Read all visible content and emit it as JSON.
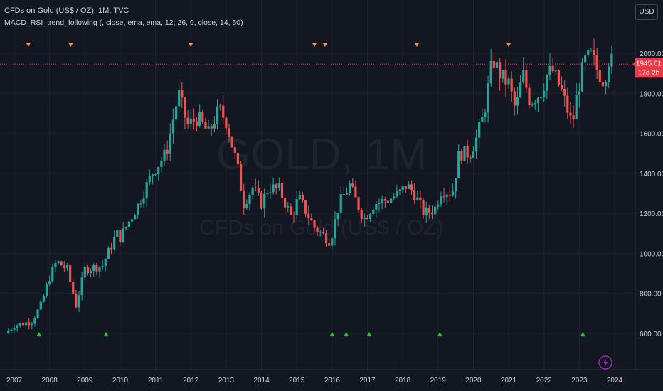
{
  "header": {
    "title": "CFDs on Gold (US$ / OZ), 1M, TVC",
    "indicator": "MACD_RSI_trend_following (, close, ema, ema, 12, 26, 9, close, 14, 50)"
  },
  "watermark": {
    "symbol": "GOLD, 1M",
    "name": "CFDs on Gold (US$ / OZ)"
  },
  "currency_button": "USD",
  "price_axis": {
    "ticks": [
      "2000.00",
      "1800.00",
      "1600.00",
      "1400.00",
      "1200.00",
      "1000.00",
      "800.00",
      "600.00"
    ],
    "tick_values": [
      2000,
      1800,
      1600,
      1400,
      1200,
      1000,
      800,
      600
    ],
    "last_price": "1945.61",
    "countdown": "17d 2h",
    "last_price_value": 1945.61
  },
  "colors": {
    "up": "#26a69a",
    "down": "#ef5350",
    "sell_marker": "#f7925b",
    "buy_marker": "#2bc52b",
    "price_line": "#f23645",
    "background": "#131722",
    "grid": "#1e222d",
    "lightning": "#9c27b0"
  },
  "icons": {
    "lightning": "lightning-icon"
  },
  "chart_data": {
    "type": "candlestick",
    "timeframe": "1M",
    "x_ticks": [
      "2007",
      "2008",
      "2009",
      "2010",
      "2011",
      "2012",
      "2013",
      "2014",
      "2015",
      "2016",
      "2017",
      "2018",
      "2019",
      "2020",
      "2021",
      "2022",
      "2023",
      "2024"
    ],
    "ylim": [
      560,
      2080
    ],
    "x_range": [
      2006.75,
      2024.2
    ],
    "grid": true,
    "close_series": [
      [
        2006.75,
        600
      ],
      [
        2007.0,
        640
      ],
      [
        2007.5,
        660
      ],
      [
        2007.75,
        740
      ],
      [
        2008.0,
        880
      ],
      [
        2008.2,
        960
      ],
      [
        2008.5,
        920
      ],
      [
        2008.75,
        740
      ],
      [
        2009.0,
        920
      ],
      [
        2009.5,
        940
      ],
      [
        2009.9,
        1100
      ],
      [
        2010.0,
        1080
      ],
      [
        2010.5,
        1240
      ],
      [
        2010.9,
        1400
      ],
      [
        2011.3,
        1500
      ],
      [
        2011.65,
        1800
      ],
      [
        2011.9,
        1640
      ],
      [
        2012.2,
        1680
      ],
      [
        2012.5,
        1600
      ],
      [
        2012.8,
        1720
      ],
      [
        2013.0,
        1660
      ],
      [
        2013.3,
        1450
      ],
      [
        2013.5,
        1250
      ],
      [
        2013.75,
        1330
      ],
      [
        2014.0,
        1250
      ],
      [
        2014.2,
        1330
      ],
      [
        2014.5,
        1320
      ],
      [
        2014.85,
        1180
      ],
      [
        2015.05,
        1280
      ],
      [
        2015.5,
        1130
      ],
      [
        2015.95,
        1060
      ],
      [
        2016.2,
        1250
      ],
      [
        2016.5,
        1340
      ],
      [
        2016.9,
        1170
      ],
      [
        2017.2,
        1250
      ],
      [
        2017.6,
        1270
      ],
      [
        2017.9,
        1300
      ],
      [
        2018.1,
        1340
      ],
      [
        2018.3,
        1310
      ],
      [
        2018.6,
        1200
      ],
      [
        2018.9,
        1220
      ],
      [
        2019.1,
        1320
      ],
      [
        2019.4,
        1300
      ],
      [
        2019.6,
        1500
      ],
      [
        2019.9,
        1500
      ],
      [
        2020.1,
        1580
      ],
      [
        2020.3,
        1700
      ],
      [
        2020.55,
        1970
      ],
      [
        2020.8,
        1880
      ],
      [
        2021.0,
        1850
      ],
      [
        2021.2,
        1710
      ],
      [
        2021.4,
        1900
      ],
      [
        2021.6,
        1760
      ],
      [
        2021.9,
        1800
      ],
      [
        2022.1,
        1900
      ],
      [
        2022.25,
        1910
      ],
      [
        2022.5,
        1810
      ],
      [
        2022.8,
        1640
      ],
      [
        2022.95,
        1810
      ],
      [
        2023.15,
        1960
      ],
      [
        2023.35,
        1990
      ],
      [
        2023.5,
        1920
      ],
      [
        2023.7,
        1860
      ],
      [
        2023.85,
        1985
      ],
      [
        2023.95,
        1945
      ]
    ],
    "sell_signals": [
      2007.4,
      2008.6,
      2012.0,
      2015.5,
      2015.8,
      2018.4,
      2021.0
    ],
    "buy_signals": [
      2007.7,
      2009.6,
      2016.0,
      2016.4,
      2017.05,
      2019.05,
      2023.1
    ]
  }
}
